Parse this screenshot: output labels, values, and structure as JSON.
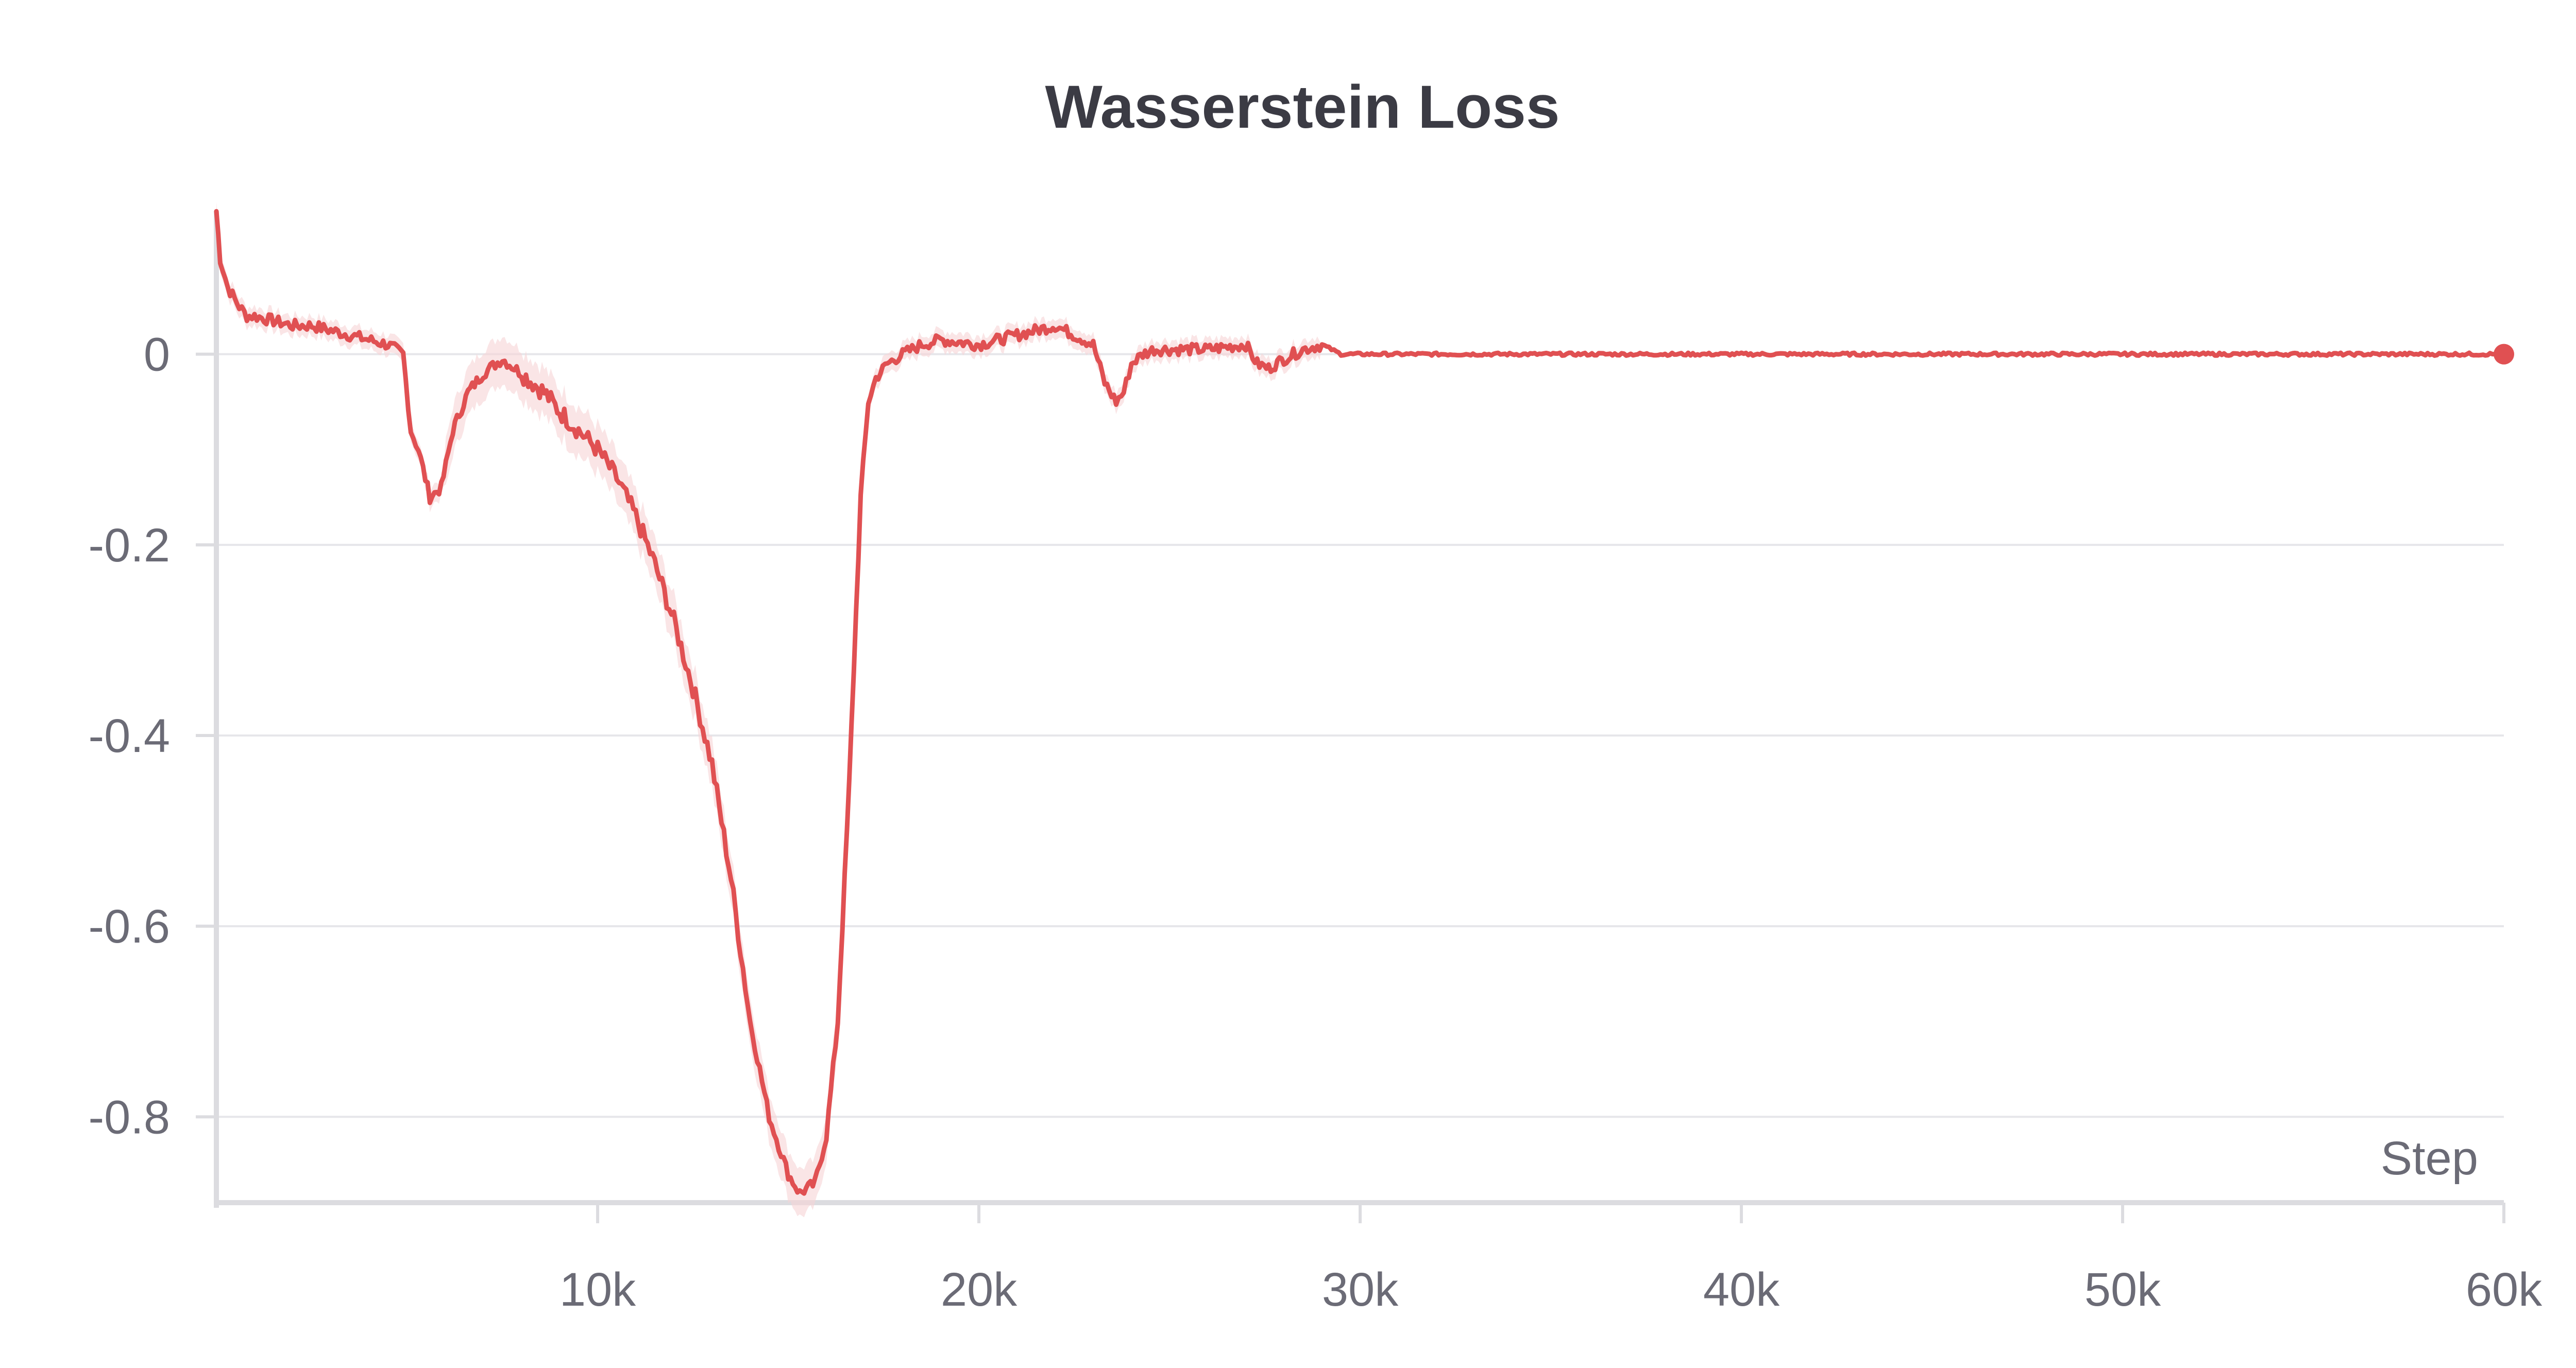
{
  "chart_data": {
    "type": "line",
    "title": "Wasserstein Loss",
    "xlabel": "Step",
    "ylabel": "",
    "xlim": [
      0,
      60000
    ],
    "ylim": [
      -0.89,
      0.15
    ],
    "x_ticks": [
      {
        "value": 10000,
        "label": "10k"
      },
      {
        "value": 20000,
        "label": "20k"
      },
      {
        "value": 30000,
        "label": "30k"
      },
      {
        "value": 40000,
        "label": "40k"
      },
      {
        "value": 50000,
        "label": "50k"
      },
      {
        "value": 60000,
        "label": "60k"
      }
    ],
    "y_ticks": [
      {
        "value": 0,
        "label": "0"
      },
      {
        "value": -0.2,
        "label": "-0.2"
      },
      {
        "value": -0.4,
        "label": "-0.4"
      },
      {
        "value": -0.6,
        "label": "-0.6"
      },
      {
        "value": -0.8,
        "label": "-0.8"
      }
    ],
    "grid": "horizontal",
    "legend": "none",
    "series": [
      {
        "color": "#e05052",
        "band_color": "#f6d4d6",
        "end_marker": true,
        "x": [
          0,
          100,
          300,
          600,
          800,
          1000,
          1500,
          2000,
          2500,
          3000,
          3500,
          4000,
          4500,
          4900,
          5100,
          5300,
          5600,
          5900,
          6200,
          6600,
          7000,
          7500,
          8000,
          8300,
          8600,
          9000,
          9500,
          10000,
          10500,
          11000,
          11500,
          12000,
          12500,
          13000,
          13500,
          14000,
          14500,
          15000,
          15300,
          15700,
          16000,
          16300,
          16600,
          16900,
          17100,
          17300,
          17600,
          18000,
          18500,
          19000,
          20000,
          21000,
          22000,
          23000,
          23300,
          23600,
          23800,
          24000,
          24300,
          24600,
          25000,
          26000,
          27000,
          27300,
          27600,
          28000,
          28500,
          29000,
          29500,
          30000,
          32000,
          35000,
          38000,
          40000,
          42000,
          45000,
          48000,
          50000,
          52000,
          55000,
          58000,
          60000
        ],
        "y": [
          0.15,
          0.1,
          0.07,
          0.05,
          0.04,
          0.04,
          0.035,
          0.03,
          0.03,
          0.025,
          0.02,
          0.015,
          0.01,
          0.0,
          -0.08,
          -0.1,
          -0.15,
          -0.14,
          -0.08,
          -0.04,
          -0.02,
          -0.005,
          -0.02,
          -0.03,
          -0.04,
          -0.06,
          -0.08,
          -0.1,
          -0.13,
          -0.17,
          -0.22,
          -0.28,
          -0.35,
          -0.43,
          -0.55,
          -0.7,
          -0.8,
          -0.86,
          -0.88,
          -0.87,
          -0.82,
          -0.7,
          -0.45,
          -0.15,
          -0.05,
          -0.025,
          -0.01,
          0.0,
          0.01,
          0.015,
          0.01,
          0.02,
          0.03,
          0.01,
          -0.03,
          -0.05,
          -0.04,
          -0.01,
          0.0,
          0.005,
          0.005,
          0.005,
          0.01,
          -0.01,
          -0.015,
          -0.005,
          0.005,
          0.01,
          0.0,
          0.0,
          0.0,
          0.0,
          0.0,
          0.0,
          0.0,
          0.0,
          0.0,
          0.0,
          0.0,
          0.0,
          0.0,
          0.0
        ]
      }
    ]
  }
}
